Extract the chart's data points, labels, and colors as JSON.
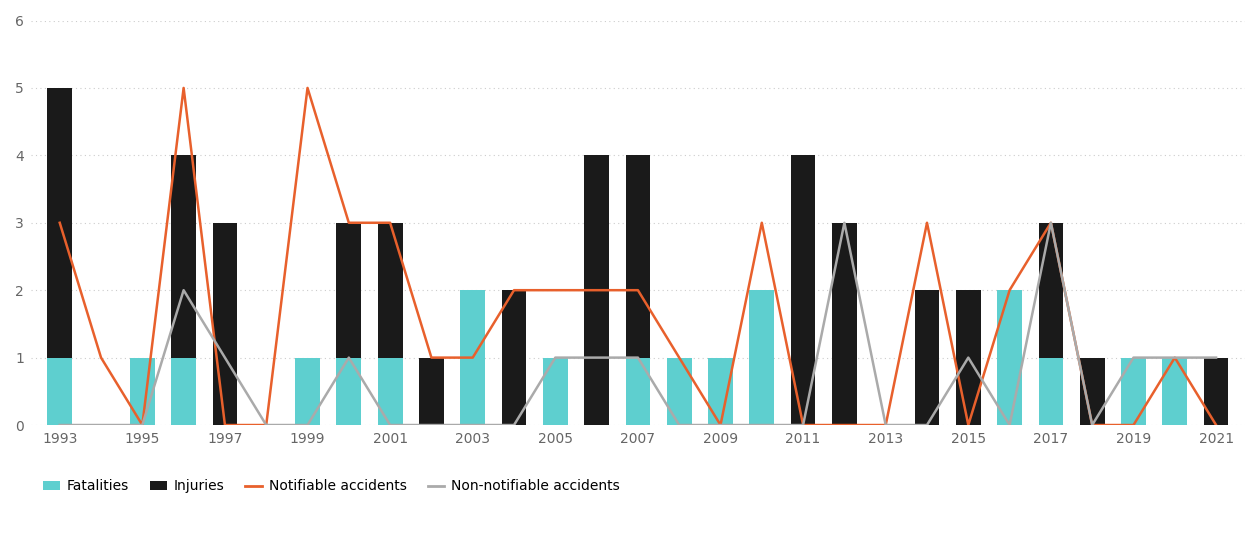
{
  "years": [
    1993,
    1994,
    1995,
    1996,
    1997,
    1998,
    1999,
    2000,
    2001,
    2002,
    2003,
    2004,
    2005,
    2006,
    2007,
    2008,
    2009,
    2010,
    2011,
    2012,
    2013,
    2014,
    2015,
    2016,
    2017,
    2018,
    2019,
    2020,
    2021
  ],
  "fatalities": [
    1,
    0,
    1,
    1,
    0,
    0,
    1,
    1,
    1,
    0,
    2,
    0,
    1,
    0,
    1,
    1,
    1,
    2,
    0,
    0,
    0,
    0,
    0,
    2,
    1,
    0,
    1,
    1,
    0
  ],
  "injuries": [
    5,
    0,
    1,
    4,
    3,
    0,
    0,
    3,
    3,
    1,
    2,
    2,
    1,
    4,
    4,
    1,
    1,
    0,
    4,
    3,
    0,
    2,
    2,
    1,
    3,
    1,
    0,
    1,
    1
  ],
  "notifiable": [
    3,
    1,
    0,
    5,
    0,
    0,
    5,
    3,
    3,
    1,
    1,
    2,
    2,
    2,
    2,
    1,
    0,
    3,
    0,
    0,
    0,
    3,
    0,
    2,
    3,
    0,
    0,
    1,
    0
  ],
  "non_notifiable": [
    0,
    0,
    0,
    2,
    1,
    0,
    0,
    1,
    0,
    0,
    0,
    0,
    1,
    1,
    1,
    0,
    0,
    0,
    0,
    3,
    0,
    0,
    1,
    0,
    3,
    0,
    1,
    1,
    1
  ],
  "fatalities_color": "#5ecfcf",
  "injuries_color": "#1a1a1a",
  "notifiable_color": "#e8602c",
  "non_notifiable_color": "#aaaaaa",
  "bar_width": 0.6,
  "ylim": [
    0,
    6
  ],
  "yticks": [
    0,
    1,
    2,
    3,
    4,
    5,
    6
  ],
  "xtick_years": [
    1993,
    1995,
    1997,
    1999,
    2001,
    2003,
    2005,
    2007,
    2009,
    2011,
    2013,
    2015,
    2017,
    2019,
    2021
  ],
  "background_color": "#ffffff",
  "grid_color": "#cccccc"
}
